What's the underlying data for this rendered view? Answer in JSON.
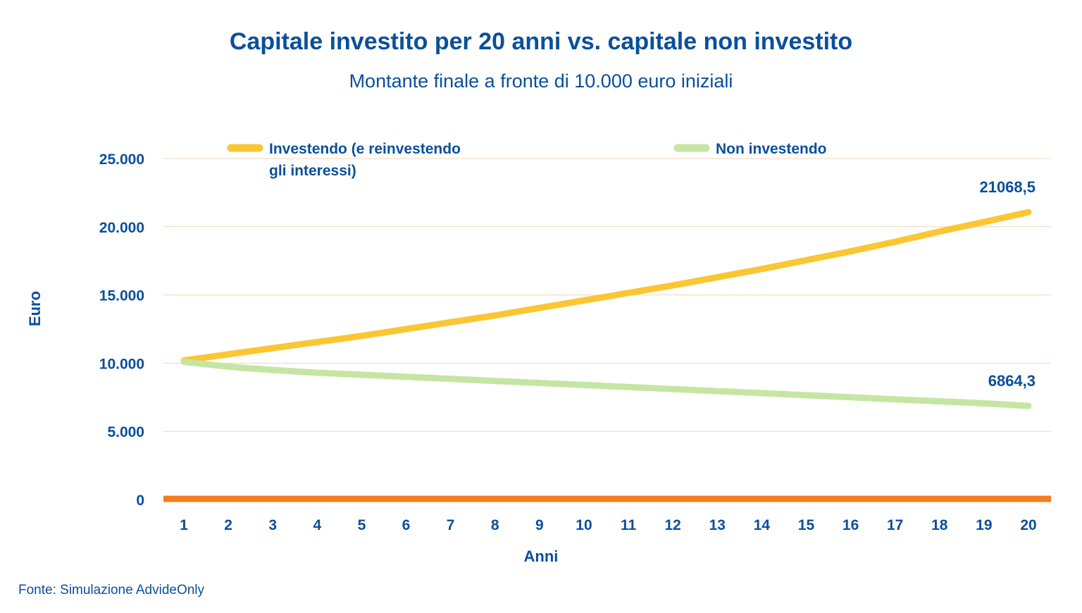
{
  "title": "Capitale investito per 20 anni vs. capitale non investito",
  "subtitle": "Montante finale a fronte di 10.000 euro iniziali",
  "source": "Fonte: Simulazione AdvideOnly",
  "colors": {
    "text": "#0a4f9c",
    "invested": "#fbc633",
    "not_invested": "#c6e5a3",
    "baseline": "#f57c1f",
    "grid": "#f3d7b8"
  },
  "chart_data": {
    "type": "line",
    "xlabel": "Anni",
    "ylabel": "Euro",
    "x": [
      1,
      2,
      3,
      4,
      5,
      6,
      7,
      8,
      9,
      10,
      11,
      12,
      13,
      14,
      15,
      16,
      17,
      18,
      19,
      20
    ],
    "ylim": [
      0,
      25000
    ],
    "yticks": [
      0,
      5000,
      10000,
      15000,
      20000,
      25000
    ],
    "ytick_labels": [
      "0",
      "5.000",
      "10.000",
      "15.000",
      "20.000",
      "25.000"
    ],
    "grid": true,
    "legend_position": "top",
    "series": [
      {
        "name": "Investendo (e reinvestendo gli interessi)",
        "legend_lines": [
          "Investendo (e reinvestendo",
          "gli interessi)"
        ],
        "values": [
          10200,
          10650,
          11100,
          11550,
          12000,
          12500,
          13000,
          13500,
          14050,
          14600,
          15150,
          15700,
          16300,
          16900,
          17550,
          18200,
          18900,
          19650,
          20350,
          21068.5
        ],
        "end_label": "21068,5"
      },
      {
        "name": "Non investendo",
        "legend_lines": [
          "Non investendo"
        ],
        "values": [
          10100,
          9750,
          9500,
          9300,
          9150,
          9000,
          8850,
          8700,
          8550,
          8400,
          8250,
          8100,
          7950,
          7800,
          7650,
          7500,
          7350,
          7200,
          7050,
          6864.3
        ],
        "end_label": "6864,3"
      }
    ]
  }
}
